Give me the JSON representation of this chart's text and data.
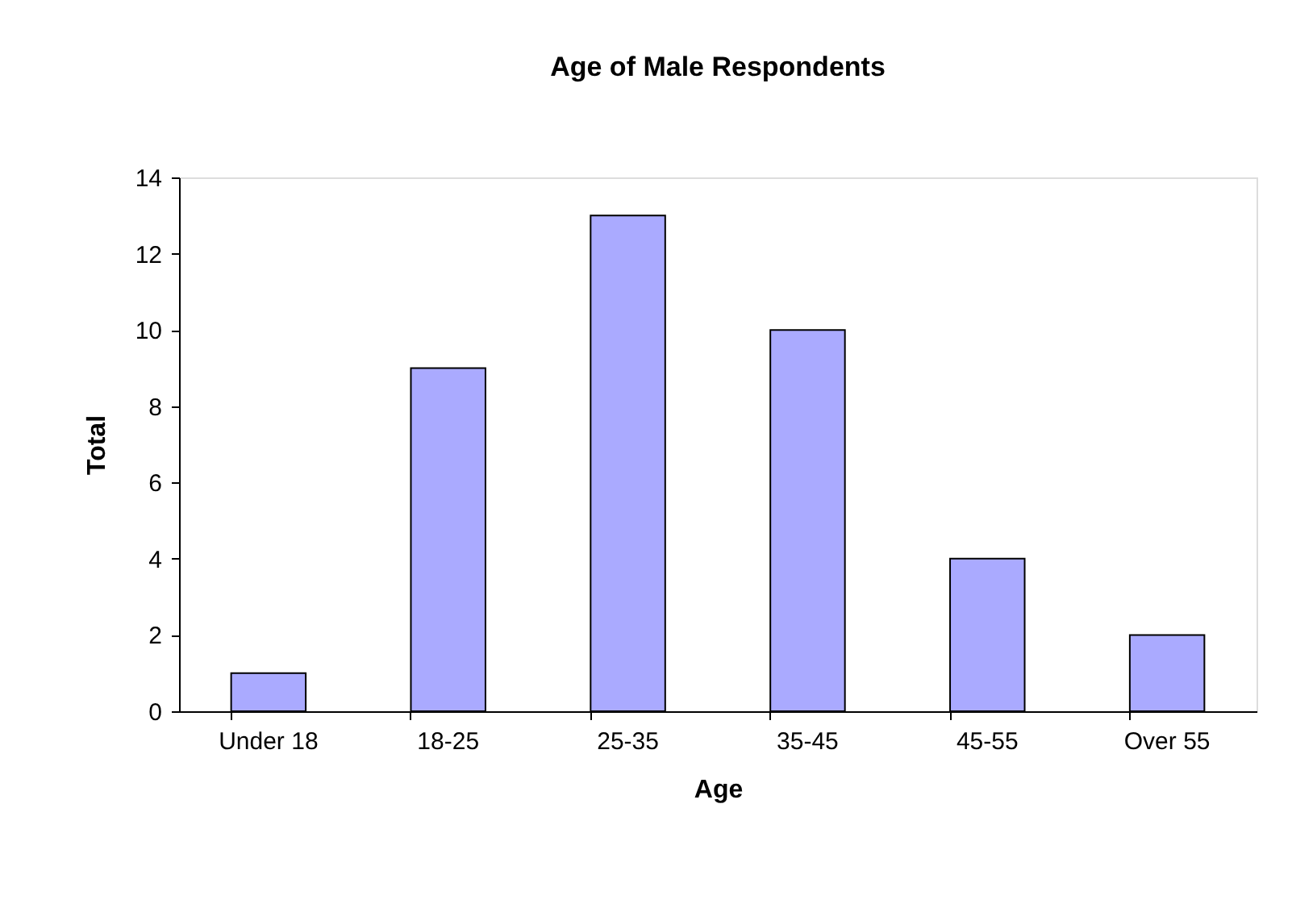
{
  "chart_data": {
    "type": "bar",
    "title": "Age of Male Respondents",
    "xlabel": "Age",
    "ylabel": "Total",
    "categories": [
      "Under 18",
      "18-25",
      "25-35",
      "35-45",
      "45-55",
      "Over 55"
    ],
    "values": [
      1,
      9,
      13,
      10,
      4,
      2
    ],
    "color": "#aaaaff",
    "ylim": [
      0,
      14
    ],
    "yticks": [
      0,
      2,
      4,
      6,
      8,
      10,
      12,
      14
    ]
  }
}
